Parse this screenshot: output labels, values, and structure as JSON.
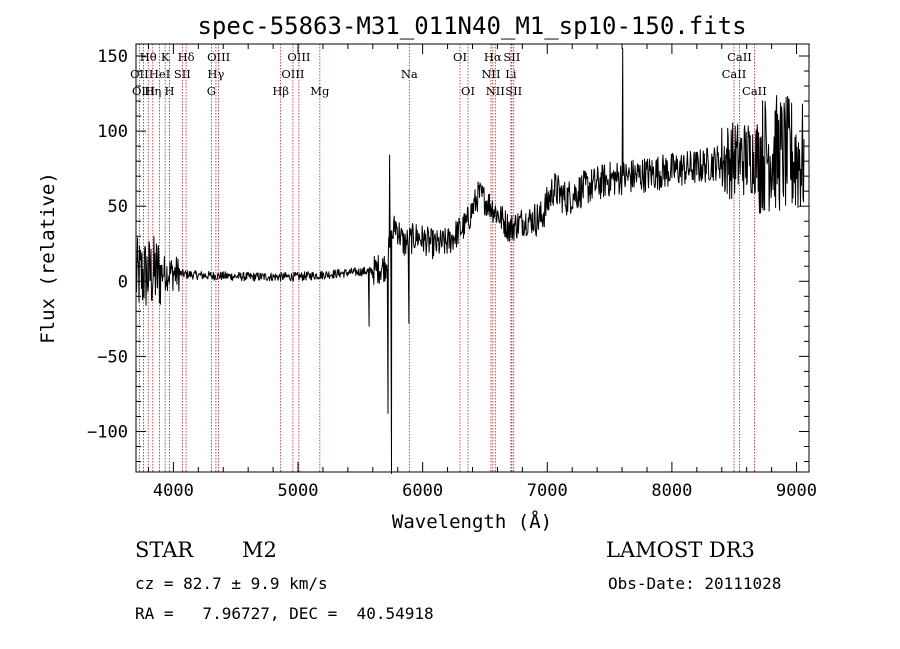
{
  "chart_data": {
    "type": "line",
    "title": "spec-55863-M31_011N40_M1_sp10-150.fits",
    "xlabel": "Wavelength (Å)",
    "ylabel": "Flux (relative)",
    "xlim": [
      3700,
      9100
    ],
    "ylim": [
      -127,
      158
    ],
    "xticks": [
      {
        "value": 4000,
        "label": "4000"
      },
      {
        "value": 5000,
        "label": "5000"
      },
      {
        "value": 6000,
        "label": "6000"
      },
      {
        "value": 7000,
        "label": "7000"
      },
      {
        "value": 8000,
        "label": "8000"
      },
      {
        "value": 9000,
        "label": "9000"
      }
    ],
    "yticks": [
      {
        "value": -100,
        "label": "−100"
      },
      {
        "value": -50,
        "label": "−50"
      },
      {
        "value": 0,
        "label": "0"
      },
      {
        "value": 50,
        "label": "50"
      },
      {
        "value": 100,
        "label": "100"
      },
      {
        "value": 150,
        "label": "150"
      }
    ],
    "line_color": "#000000",
    "marker_color": "#b02020",
    "spectral_lines": [
      {
        "label": "Hθ",
        "wavelength": 3798,
        "row": 0
      },
      {
        "label": "OII",
        "wavelength": 3727,
        "row": 1
      },
      {
        "label": "OIII",
        "wavelength": 3760,
        "row": 2
      },
      {
        "label": "Hη",
        "wavelength": 3835,
        "row": 2
      },
      {
        "label": "HeI",
        "wavelength": 3889,
        "row": 1
      },
      {
        "label": "K",
        "wavelength": 3934,
        "row": 0
      },
      {
        "label": "H",
        "wavelength": 3969,
        "row": 2
      },
      {
        "label": "SII",
        "wavelength": 4072,
        "row": 1
      },
      {
        "label": "Hδ",
        "wavelength": 4102,
        "row": 0
      },
      {
        "label": "G",
        "wavelength": 4305,
        "row": 2
      },
      {
        "label": "Hγ",
        "wavelength": 4341,
        "row": 1
      },
      {
        "label": "OIII",
        "wavelength": 4363,
        "row": 0
      },
      {
        "label": "Hβ",
        "wavelength": 4861,
        "row": 2
      },
      {
        "label": "OIII",
        "wavelength": 4959,
        "row": 1
      },
      {
        "label": "OIII",
        "wavelength": 5007,
        "row": 0
      },
      {
        "label": "Mg",
        "wavelength": 5175,
        "row": 2
      },
      {
        "label": "Na",
        "wavelength": 5893,
        "row": 1
      },
      {
        "label": "OI",
        "wavelength": 6300,
        "row": 0
      },
      {
        "label": "OI",
        "wavelength": 6364,
        "row": 2
      },
      {
        "label": "NII",
        "wavelength": 6548,
        "row": 1
      },
      {
        "label": "Hα",
        "wavelength": 6563,
        "row": 0
      },
      {
        "label": "NII",
        "wavelength": 6583,
        "row": 2
      },
      {
        "label": "Li",
        "wavelength": 6708,
        "row": 1
      },
      {
        "label": "SII",
        "wavelength": 6716,
        "row": 0
      },
      {
        "label": "SII",
        "wavelength": 6731,
        "row": 2
      },
      {
        "label": "CaII",
        "wavelength": 8498,
        "row": 1
      },
      {
        "label": "CaII",
        "wavelength": 8542,
        "row": 0
      },
      {
        "label": "CaII",
        "wavelength": 8662,
        "row": 2
      }
    ],
    "spectrum_knots": [
      [
        3700,
        3
      ],
      [
        3900,
        6
      ],
      [
        4200,
        4
      ],
      [
        4600,
        3
      ],
      [
        5000,
        3
      ],
      [
        5300,
        5
      ],
      [
        5600,
        7
      ],
      [
        5700,
        10
      ],
      [
        5780,
        38
      ],
      [
        5850,
        25
      ],
      [
        5950,
        30
      ],
      [
        6100,
        24
      ],
      [
        6200,
        26
      ],
      [
        6350,
        38
      ],
      [
        6450,
        58
      ],
      [
        6550,
        50
      ],
      [
        6700,
        35
      ],
      [
        6800,
        40
      ],
      [
        6950,
        42
      ],
      [
        7050,
        62
      ],
      [
        7150,
        55
      ],
      [
        7300,
        62
      ],
      [
        7500,
        68
      ],
      [
        7700,
        70
      ],
      [
        8000,
        74
      ],
      [
        8200,
        76
      ],
      [
        8400,
        80
      ],
      [
        8600,
        82
      ],
      [
        8800,
        86
      ],
      [
        9100,
        80
      ]
    ],
    "spectrum_features": [
      {
        "x": 5570,
        "y": -30
      },
      {
        "x": 5722,
        "y": -88
      },
      {
        "x": 5735,
        "y": 84
      },
      {
        "x": 5750,
        "y": -128
      },
      {
        "x": 5890,
        "y": -28
      },
      {
        "x": 7605,
        "y": 155
      }
    ]
  },
  "info": {
    "object_type": "STAR",
    "subclass": "M2",
    "survey": "LAMOST DR3",
    "cz": "cz = 82.7 ± 9.9 km/s",
    "obs_date": "Obs-Date: 20111028",
    "coords": "RA =   7.96727, DEC =  40.54918"
  }
}
